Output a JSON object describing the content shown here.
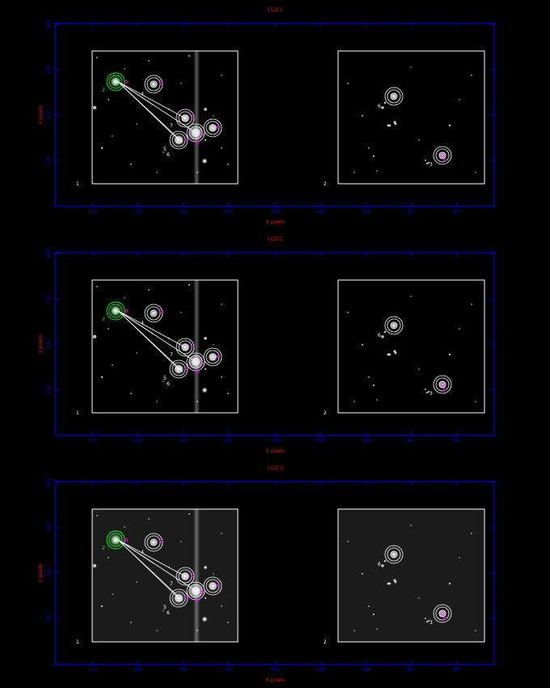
{
  "colors": {
    "background": "#000000",
    "axis": "#0000ff",
    "axis_text": "#0000ff",
    "title_text": "#ff0000",
    "frame": "#ffffff",
    "target_aperture": "#00ff00",
    "comparison_aperture": "#ffffff",
    "marker": "#ff00ff"
  },
  "x_ticks": [
    "100",
    "200",
    "300",
    "400",
    "500",
    "600",
    "700",
    "800",
    "900"
  ],
  "y_ticks": [
    "100",
    "200",
    "300",
    "400"
  ],
  "x_axis_label": "X pixels",
  "y_axis_label": "Y pixels",
  "window_labels": [
    "1",
    "2"
  ],
  "panels": [
    {
      "title": "CCD 1",
      "image_tone": "dark",
      "star_labels": {
        "s2": "2",
        "s4": "4",
        "s5": "5",
        "s6": "6",
        "s7": "7",
        "r3": "3",
        "r6": "6"
      }
    },
    {
      "title": "CCD 2",
      "image_tone": "dark",
      "star_labels": {
        "s2": "2",
        "s4": "4",
        "s5": "5",
        "s6": "6",
        "s7": "7",
        "r3": "3",
        "r6": "6"
      }
    },
    {
      "title": "CCD 3",
      "image_tone": "grey",
      "star_labels": {
        "s2": "2",
        "s4": "4",
        "s5": "5",
        "s6": "6",
        "s7": "7",
        "r3": "3",
        "r6": "6"
      }
    }
  ]
}
